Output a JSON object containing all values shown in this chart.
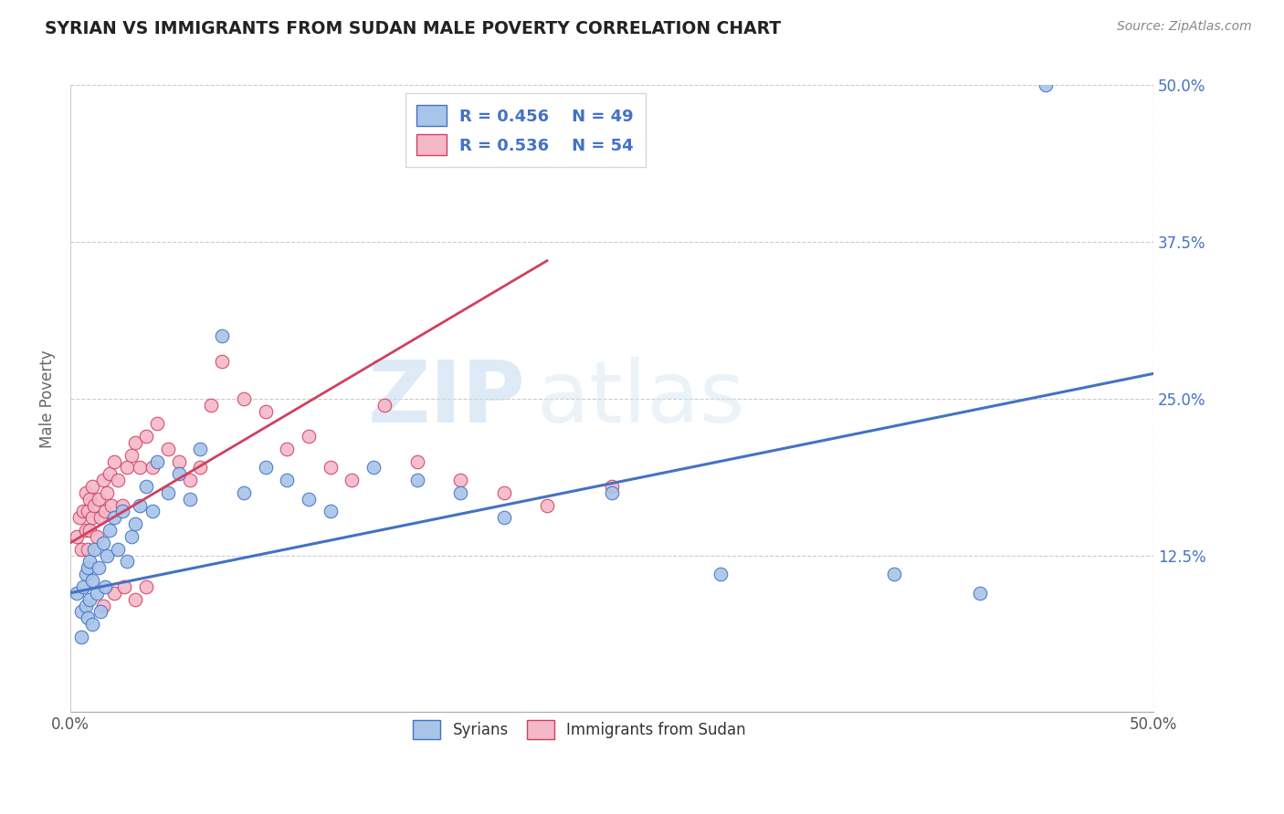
{
  "title": "SYRIAN VS IMMIGRANTS FROM SUDAN MALE POVERTY CORRELATION CHART",
  "source": "Source: ZipAtlas.com",
  "ylabel": "Male Poverty",
  "ytick_labels": [
    "",
    "12.5%",
    "25.0%",
    "37.5%",
    "50.0%"
  ],
  "ytick_values": [
    0.0,
    0.125,
    0.25,
    0.375,
    0.5
  ],
  "xlim": [
    0.0,
    0.5
  ],
  "ylim": [
    0.0,
    0.5
  ],
  "color_syrians_fill": "#a8c4e8",
  "color_syrians_edge": "#4472c4",
  "color_sudan_fill": "#f4b8c8",
  "color_sudan_edge": "#d04060",
  "color_syrians_line": "#4472c4",
  "color_sudan_line": "#d04060",
  "watermark_zip": "ZIP",
  "watermark_atlas": "atlas",
  "syrians_x": [
    0.003,
    0.005,
    0.005,
    0.006,
    0.007,
    0.007,
    0.008,
    0.008,
    0.009,
    0.009,
    0.01,
    0.01,
    0.011,
    0.012,
    0.013,
    0.014,
    0.015,
    0.016,
    0.017,
    0.018,
    0.02,
    0.022,
    0.024,
    0.026,
    0.028,
    0.03,
    0.032,
    0.035,
    0.038,
    0.04,
    0.045,
    0.05,
    0.055,
    0.06,
    0.07,
    0.08,
    0.09,
    0.1,
    0.11,
    0.12,
    0.14,
    0.16,
    0.18,
    0.2,
    0.25,
    0.3,
    0.38,
    0.42,
    0.45
  ],
  "syrians_y": [
    0.095,
    0.06,
    0.08,
    0.1,
    0.085,
    0.11,
    0.075,
    0.115,
    0.09,
    0.12,
    0.07,
    0.105,
    0.13,
    0.095,
    0.115,
    0.08,
    0.135,
    0.1,
    0.125,
    0.145,
    0.155,
    0.13,
    0.16,
    0.12,
    0.14,
    0.15,
    0.165,
    0.18,
    0.16,
    0.2,
    0.175,
    0.19,
    0.17,
    0.21,
    0.3,
    0.175,
    0.195,
    0.185,
    0.17,
    0.16,
    0.195,
    0.185,
    0.175,
    0.155,
    0.175,
    0.11,
    0.11,
    0.095,
    0.5
  ],
  "sudan_x": [
    0.003,
    0.004,
    0.005,
    0.006,
    0.007,
    0.007,
    0.008,
    0.008,
    0.009,
    0.009,
    0.01,
    0.01,
    0.011,
    0.012,
    0.013,
    0.014,
    0.015,
    0.016,
    0.017,
    0.018,
    0.019,
    0.02,
    0.022,
    0.024,
    0.026,
    0.028,
    0.03,
    0.032,
    0.035,
    0.038,
    0.04,
    0.045,
    0.05,
    0.055,
    0.06,
    0.065,
    0.07,
    0.08,
    0.09,
    0.1,
    0.11,
    0.12,
    0.13,
    0.145,
    0.16,
    0.18,
    0.2,
    0.22,
    0.25,
    0.015,
    0.02,
    0.025,
    0.03,
    0.035
  ],
  "sudan_y": [
    0.14,
    0.155,
    0.13,
    0.16,
    0.145,
    0.175,
    0.13,
    0.16,
    0.145,
    0.17,
    0.155,
    0.18,
    0.165,
    0.14,
    0.17,
    0.155,
    0.185,
    0.16,
    0.175,
    0.19,
    0.165,
    0.2,
    0.185,
    0.165,
    0.195,
    0.205,
    0.215,
    0.195,
    0.22,
    0.195,
    0.23,
    0.21,
    0.2,
    0.185,
    0.195,
    0.245,
    0.28,
    0.25,
    0.24,
    0.21,
    0.22,
    0.195,
    0.185,
    0.245,
    0.2,
    0.185,
    0.175,
    0.165,
    0.18,
    0.085,
    0.095,
    0.1,
    0.09,
    0.1
  ],
  "syrians_line_x0": 0.0,
  "syrians_line_x1": 0.5,
  "syrians_line_y0": 0.095,
  "syrians_line_y1": 0.27,
  "sudan_line_x0": 0.0,
  "sudan_line_x1": 0.22,
  "sudan_line_y0": 0.135,
  "sudan_line_y1": 0.36
}
